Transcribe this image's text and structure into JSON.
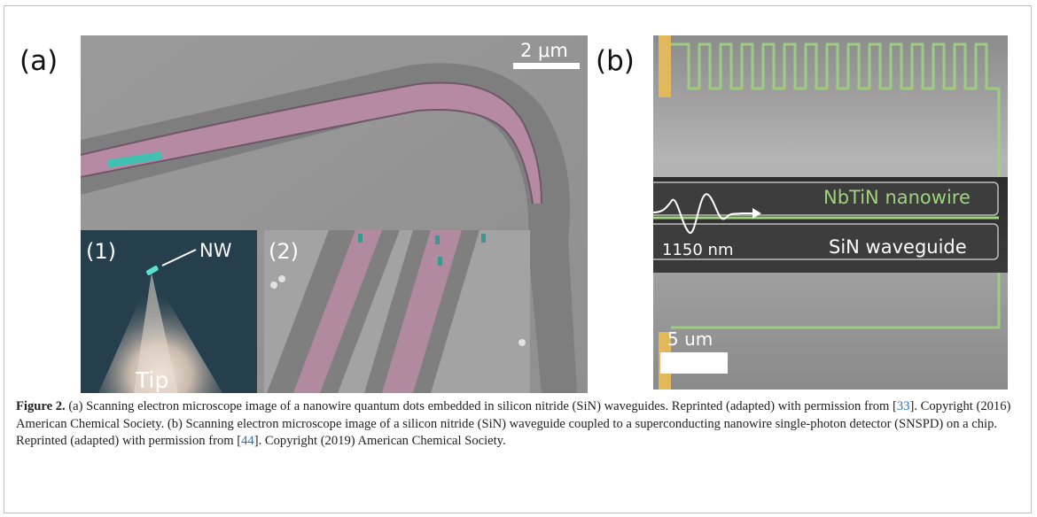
{
  "panel_a": {
    "label": "(a)",
    "scale_bar": "2 μm",
    "inset1": {
      "label": "(1)",
      "nw_label": "NW",
      "tip_label": "Tip"
    },
    "inset2": {
      "label": "(2)"
    }
  },
  "panel_b": {
    "label": "(b)",
    "nanowire_label": "NbTiN nanowire",
    "waveguide_label": "SiN waveguide",
    "wavelength_label": "1150 nm",
    "scale_bar": "5 um"
  },
  "caption": {
    "figure_label": "Figure 2.",
    "seg1": " (a) Scanning electron microscope image of a nanowire quantum dots embedded in silicon nitride (SiN) waveguides. Reprinted (adapted) with permission from [",
    "ref1": "33",
    "seg2": "]. Copyright (2016) American Chemical Society. (b) Scanning electron microscope image of a silicon nitride (SiN) waveguide coupled to a superconducting nanowire single-photon detector (SNSPD) on a chip. Reprinted (adapted) with permission from [",
    "ref2": "44",
    "seg3": "]. Copyright (2019) American Chemical Society."
  },
  "colors": {
    "waveguide_pink": "#b78aa3",
    "nanowire_green": "#9fd27d",
    "contact_gold": "#e3b85a",
    "quantum_dot_cyan": "#3fc0b0",
    "link": "#2a6fb3"
  }
}
